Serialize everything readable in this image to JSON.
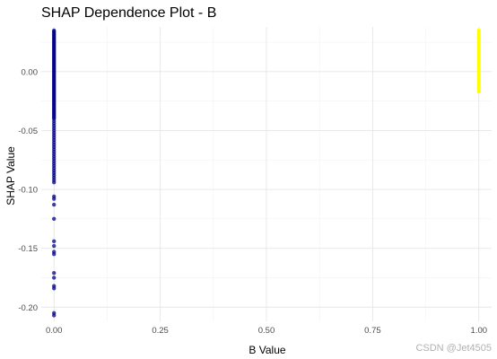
{
  "chart_data": {
    "type": "scatter",
    "title": "SHAP Dependence Plot - B",
    "xlabel": "B Value",
    "ylabel": "SHAP Value",
    "xlim": [
      -0.03,
      1.03
    ],
    "ylim": [
      -0.212,
      0.038
    ],
    "x_ticks": [
      0.0,
      0.25,
      0.5,
      0.75,
      1.0
    ],
    "x_tick_labels": [
      "0.00",
      "0.25",
      "0.50",
      "0.75",
      "1.00"
    ],
    "y_ticks": [
      0.0,
      -0.05,
      -0.1,
      -0.15,
      -0.2
    ],
    "y_tick_labels": [
      "0.00",
      "-0.05",
      "-0.10",
      "-0.15",
      "-0.20"
    ],
    "grid": true,
    "legend": "none",
    "series": [
      {
        "color": "#00008b",
        "x_value": 0,
        "y_values": [
          0.035,
          0.034,
          0.033,
          0.032,
          0.031,
          0.03,
          0.029,
          0.028,
          0.027,
          0.026,
          0.025,
          0.024,
          0.023,
          0.022,
          0.021,
          0.02,
          0.019,
          0.018,
          0.017,
          0.016,
          0.015,
          0.014,
          0.013,
          0.012,
          0.011,
          0.01,
          0.009,
          0.008,
          0.007,
          0.006,
          0.005,
          0.004,
          0.003,
          0.002,
          0.001,
          0.0,
          -0.001,
          -0.002,
          -0.003,
          -0.004,
          -0.005,
          -0.006,
          -0.007,
          -0.008,
          -0.009,
          -0.01,
          -0.011,
          -0.012,
          -0.013,
          -0.014,
          -0.015,
          -0.016,
          -0.017,
          -0.018,
          -0.019,
          -0.02,
          -0.021,
          -0.022,
          -0.023,
          -0.024,
          -0.025,
          -0.026,
          -0.027,
          -0.028,
          -0.029,
          -0.03,
          -0.031,
          -0.032,
          -0.033,
          -0.034,
          -0.035,
          -0.036,
          -0.037,
          -0.038,
          -0.039,
          -0.04,
          -0.042,
          -0.044,
          -0.046,
          -0.048,
          -0.05,
          -0.052,
          -0.054,
          -0.056,
          -0.058,
          -0.06,
          -0.062,
          -0.064,
          -0.066,
          -0.068,
          -0.07,
          -0.072,
          -0.074,
          -0.076,
          -0.078,
          -0.08,
          -0.082,
          -0.084,
          -0.086,
          -0.088,
          -0.09,
          -0.092,
          -0.094,
          -0.106,
          -0.108,
          -0.113,
          -0.125,
          -0.144,
          -0.148,
          -0.153,
          -0.155,
          -0.171,
          -0.175,
          -0.182,
          -0.184,
          -0.205,
          -0.207
        ]
      },
      {
        "color": "#ffff00",
        "x_value": 1,
        "y_range": [
          -0.017,
          0.035
        ]
      }
    ]
  },
  "watermark": "CSDN @Jet4505"
}
